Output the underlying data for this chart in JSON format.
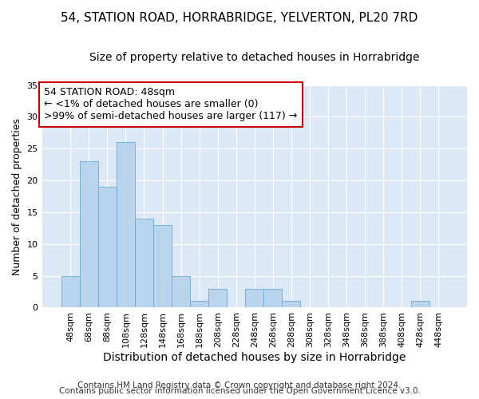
{
  "title": "54, STATION ROAD, HORRABRIDGE, YELVERTON, PL20 7RD",
  "subtitle": "Size of property relative to detached houses in Horrabridge",
  "xlabel": "Distribution of detached houses by size in Horrabridge",
  "ylabel": "Number of detached properties",
  "footer_line1": "Contains HM Land Registry data © Crown copyright and database right 2024.",
  "footer_line2": "Contains public sector information licensed under the Open Government Licence v3.0.",
  "bins": [
    "48sqm",
    "68sqm",
    "88sqm",
    "108sqm",
    "128sqm",
    "148sqm",
    "168sqm",
    "188sqm",
    "208sqm",
    "228sqm",
    "248sqm",
    "268sqm",
    "288sqm",
    "308sqm",
    "328sqm",
    "348sqm",
    "368sqm",
    "388sqm",
    "408sqm",
    "428sqm",
    "448sqm"
  ],
  "values": [
    5,
    23,
    19,
    26,
    14,
    13,
    5,
    1,
    3,
    0,
    3,
    3,
    1,
    0,
    0,
    0,
    0,
    0,
    0,
    1,
    0
  ],
  "bar_color": "#bad4ed",
  "bar_edge_color": "#6aaad4",
  "annotation_line1": "54 STATION ROAD: 48sqm",
  "annotation_line2": "← <1% of detached houses are smaller (0)",
  "annotation_line3": ">99% of semi-detached houses are larger (117) →",
  "annotation_box_color": "#ffffff",
  "annotation_box_edge": "#cc0000",
  "ylim": [
    0,
    35
  ],
  "yticks": [
    0,
    5,
    10,
    15,
    20,
    25,
    30,
    35
  ],
  "fig_bg_color": "#ffffff",
  "plot_bg_color": "#dce8f5",
  "title_fontsize": 11,
  "subtitle_fontsize": 10,
  "xlabel_fontsize": 10,
  "ylabel_fontsize": 9,
  "annot_fontsize": 9,
  "tick_fontsize": 8,
  "footer_fontsize": 7.5
}
